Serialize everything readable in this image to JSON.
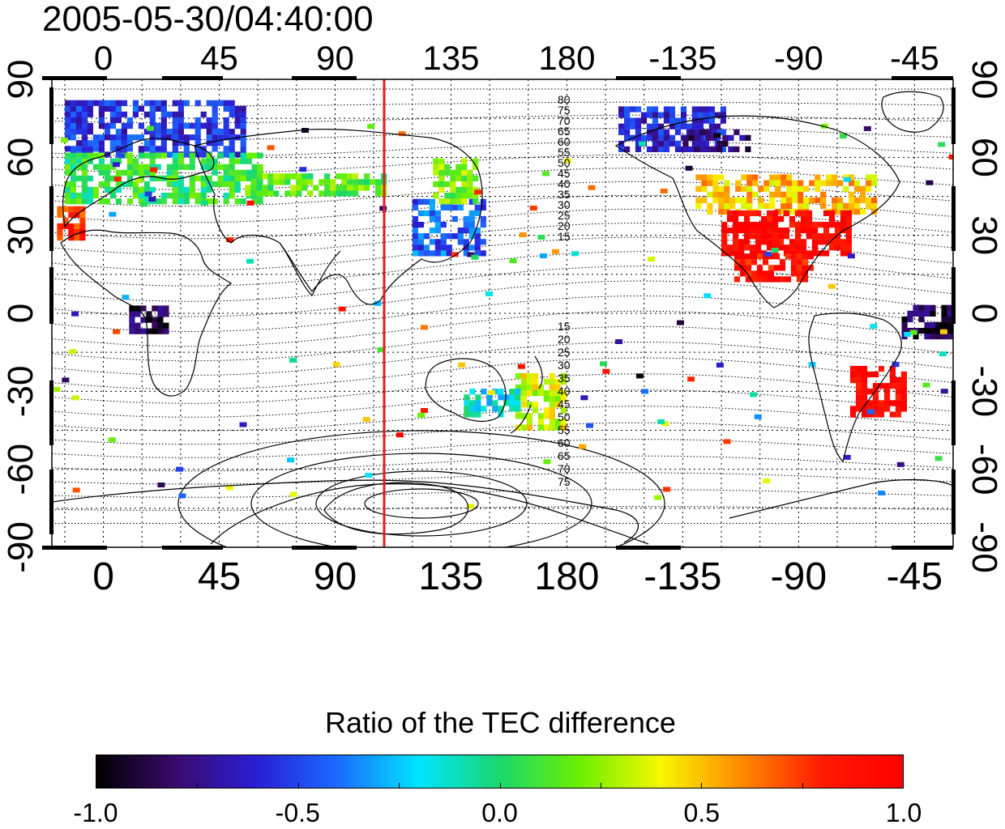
{
  "title": "2005-05-30/04:40:00",
  "axes": {
    "lon_ticks": [
      "0",
      "45",
      "90",
      "135",
      "180",
      "-135",
      "-90",
      "-45"
    ],
    "lat_ticks": [
      "90",
      "60",
      "30",
      "0",
      "-30",
      "-60",
      "-90"
    ],
    "lon_range": [
      -20,
      330
    ],
    "lat_range": [
      -90,
      90
    ],
    "grid": true
  },
  "marker_line": {
    "longitude": 110,
    "color": "#dd1f1f"
  },
  "contour_labels_north": [
    "80",
    "75",
    "70",
    "65",
    "60",
    "55",
    "50",
    "45",
    "40",
    "35",
    "30",
    "25",
    "20",
    "15"
  ],
  "contour_labels_south": [
    "15",
    "20",
    "25",
    "30",
    "35",
    "40",
    "45",
    "50",
    "55",
    "60",
    "65",
    "70",
    "75"
  ],
  "colorbar": {
    "title": "Ratio of the TEC difference",
    "min": -1.0,
    "max": 1.0,
    "tick_labels": [
      "-1.0",
      "-0.5",
      "0.0",
      "0.5",
      "1.0"
    ],
    "colors": [
      "#000000",
      "#3a0a6e",
      "#2a1fd6",
      "#1a6cff",
      "#00e5ff",
      "#19d86c",
      "#6cf000",
      "#f7f700",
      "#ff8a00",
      "#ff1a00",
      "#ff0000"
    ]
  },
  "chart_data": {
    "type": "heatmap",
    "title": "2005-05-30/04:40:00",
    "xlabel": "",
    "ylabel": "",
    "xlim": [
      -20,
      330
    ],
    "ylim": [
      -90,
      90
    ],
    "value_range": [
      -1.0,
      1.0
    ],
    "regions": [
      {
        "lon": [
          -15,
          55
        ],
        "lat": [
          60,
          80
        ],
        "value": -0.55
      },
      {
        "lon": [
          -15,
          60
        ],
        "lat": [
          42,
          60
        ],
        "value": 0.05
      },
      {
        "lon": [
          -18,
          -8
        ],
        "lat": [
          28,
          40
        ],
        "value": 0.8
      },
      {
        "lon": [
          55,
          110
        ],
        "lat": [
          45,
          52
        ],
        "value": 0.15
      },
      {
        "lon": [
          120,
          148
        ],
        "lat": [
          22,
          42
        ],
        "value": -0.45
      },
      {
        "lon": [
          128,
          145
        ],
        "lat": [
          42,
          58
        ],
        "value": 0.2
      },
      {
        "lon": [
          200,
          240
        ],
        "lat": [
          62,
          78
        ],
        "value": -0.6
      },
      {
        "lon": [
          230,
          300
        ],
        "lat": [
          38,
          52
        ],
        "value": 0.5
      },
      {
        "lon": [
          240,
          290
        ],
        "lat": [
          22,
          38
        ],
        "value": 0.95
      },
      {
        "lon": [
          245,
          275
        ],
        "lat": [
          12,
          22
        ],
        "value": 0.9
      },
      {
        "lon": [
          290,
          310
        ],
        "lat": [
          -40,
          -22
        ],
        "value": 0.95
      },
      {
        "lon": [
          160,
          178
        ],
        "lat": [
          -45,
          -25
        ],
        "value": 0.35
      },
      {
        "lon": [
          140,
          160
        ],
        "lat": [
          -40,
          -30
        ],
        "value": -0.15
      },
      {
        "lon": [
          10,
          25
        ],
        "lat": [
          -8,
          2
        ],
        "value": -0.85
      },
      {
        "lon": [
          225,
          250
        ],
        "lat": [
          62,
          70
        ],
        "value": -0.75
      },
      {
        "lon": [
          310,
          330
        ],
        "lat": [
          -10,
          2
        ],
        "value": -0.9
      }
    ]
  }
}
